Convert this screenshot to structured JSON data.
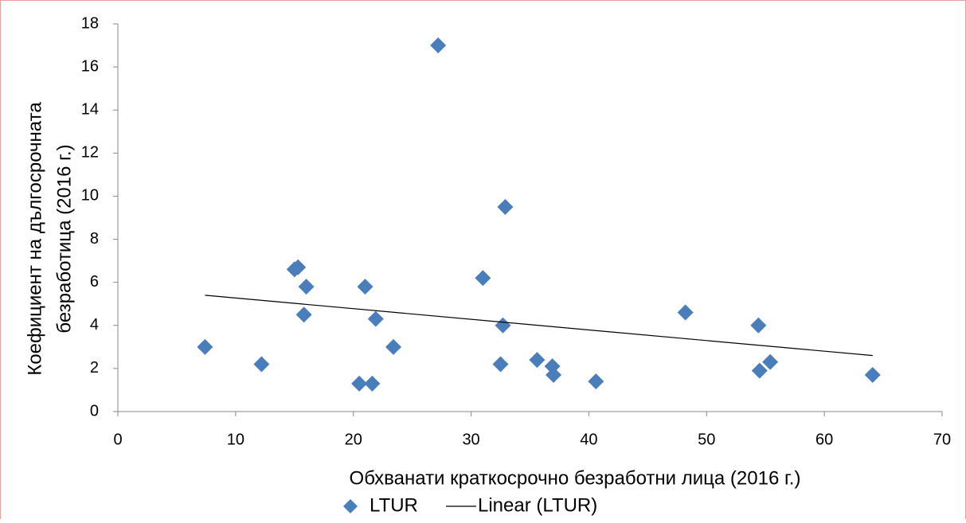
{
  "chart_data": {
    "type": "scatter",
    "xlabel": "Обхванати краткосрочно безработни лица (2016 г.)",
    "ylabel": [
      "Коефициент на дългосрочната",
      "безработица (2016 г.)"
    ],
    "xlim": [
      0,
      70
    ],
    "xticks": [
      0,
      10,
      20,
      30,
      40,
      50,
      60,
      70
    ],
    "ylim": [
      0,
      18
    ],
    "yticks": [
      0,
      2,
      4,
      6,
      8,
      10,
      12,
      14,
      16,
      18
    ],
    "grid": false,
    "legend": "bottom",
    "series": [
      {
        "name": "LTUR",
        "color": "#4a7ebb",
        "marker": "diamond",
        "x": [
          7.4,
          12.2,
          15.0,
          15.3,
          16.0,
          15.8,
          20.5,
          21.0,
          21.6,
          21.9,
          23.4,
          27.2,
          31.0,
          32.5,
          32.7,
          32.9,
          35.6,
          36.9,
          37.0,
          40.6,
          48.2,
          54.4,
          54.5,
          55.4,
          64.1
        ],
        "values": [
          3.0,
          2.2,
          6.6,
          6.7,
          5.8,
          4.5,
          1.3,
          5.8,
          1.3,
          4.3,
          3.0,
          17.0,
          6.2,
          2.2,
          4.0,
          9.5,
          2.4,
          2.1,
          1.7,
          1.4,
          4.6,
          4.0,
          1.9,
          2.3,
          1.7
        ]
      },
      {
        "name": "Linear (LTUR)",
        "color": "#000000",
        "marker": "line",
        "x": [
          7.4,
          64.1
        ],
        "values": [
          5.4,
          2.6
        ]
      }
    ]
  }
}
